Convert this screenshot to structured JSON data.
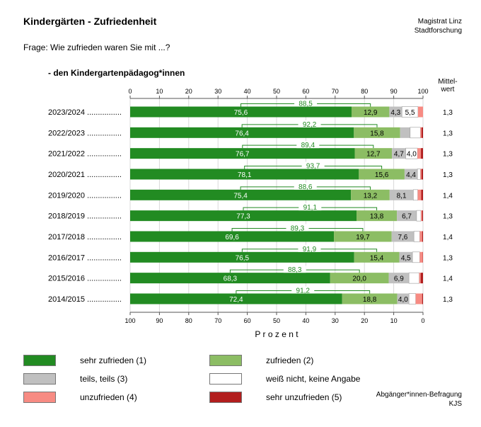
{
  "header": {
    "title": "Kindergärten - Zufriedenheit",
    "publisher": "Magistrat Linz\nStadtforschung",
    "question": "Frage: Wie zufrieden waren Sie mit ...?",
    "subtitle": "- den Kindergartenpädagog*innen",
    "mean_header": "Mittel-\nwert"
  },
  "footer": {
    "source": "Abgänger*innen-Befragung\nKJS"
  },
  "chart_data": {
    "type": "bar",
    "orientation": "horizontal-stacked-100",
    "xlabel": "P r o z e n t",
    "xlim": [
      0,
      100
    ],
    "top_ticks": [
      "0",
      "10",
      "20",
      "30",
      "40",
      "50",
      "60",
      "70",
      "80",
      "90",
      "100"
    ],
    "bottom_ticks": [
      "100",
      "90",
      "80",
      "70",
      "60",
      "50",
      "40",
      "30",
      "20",
      "10",
      "0"
    ],
    "categories": [
      "2023/2024",
      "2022/2023",
      "2021/2022",
      "2020/2021",
      "2019/2020",
      "2018/2019",
      "2017/2018",
      "2016/2017",
      "2015/2016",
      "2014/2015"
    ],
    "category_suffix": " ................",
    "series": [
      {
        "name": "sehr zufrieden  (1)",
        "color": "#228b22",
        "label_color": "#ffffff",
        "values": [
          75.6,
          76.4,
          76.7,
          78.1,
          75.4,
          77.3,
          69.6,
          76.5,
          68.3,
          72.4
        ]
      },
      {
        "name": "zufrieden  (2)",
        "color": "#8cbd64",
        "label_color": "#000000",
        "values": [
          12.9,
          15.8,
          12.7,
          15.6,
          13.2,
          13.8,
          19.7,
          15.4,
          20.0,
          18.8
        ]
      },
      {
        "name": "teils, teils  (3)",
        "color": "#c0c0c0",
        "label_color": "#000000",
        "values": [
          4.3,
          3.4,
          4.7,
          4.4,
          8.1,
          6.7,
          7.6,
          4.5,
          6.9,
          4.0
        ]
      },
      {
        "name": "weiß nicht, keine Angabe",
        "color": "#ffffff",
        "label_color": "#000000",
        "values": [
          5.5,
          3.5,
          4.0,
          1.0,
          1.5,
          1.5,
          2.0,
          2.5,
          3.5,
          2.3
        ]
      },
      {
        "name": "unzufrieden  (4)",
        "color": "#f78b83",
        "label_color": "#000000",
        "values": [
          1.7,
          0.4,
          1.2,
          0.4,
          1.2,
          0.4,
          0.8,
          1.0,
          0.5,
          2.2
        ]
      },
      {
        "name": "sehr unzufrieden  (5)",
        "color": "#b21e1e",
        "label_color": "#ffffff",
        "values": [
          0.0,
          0.5,
          0.7,
          0.5,
          0.6,
          0.3,
          0.3,
          0.1,
          0.8,
          0.3
        ]
      }
    ],
    "segment_labels": [
      [
        "75,6",
        "12,9",
        "4,3",
        "5,5",
        "",
        ""
      ],
      [
        "76,4",
        "15,8",
        "",
        "",
        "",
        ""
      ],
      [
        "76,7",
        "12,7",
        "4,7",
        "4,0",
        "",
        ""
      ],
      [
        "78,1",
        "15,6",
        "4,4",
        "",
        "",
        ""
      ],
      [
        "75,4",
        "13,2",
        "8,1",
        "",
        "",
        ""
      ],
      [
        "77,3",
        "13,8",
        "6,7",
        "",
        "",
        ""
      ],
      [
        "69,6",
        "19,7",
        "7,6",
        "",
        "",
        ""
      ],
      [
        "76,5",
        "15,4",
        "4,5",
        "",
        "",
        ""
      ],
      [
        "68,3",
        "20,0",
        "6,9",
        "",
        "",
        ""
      ],
      [
        "72,4",
        "18,8",
        "4,0",
        "",
        "",
        ""
      ]
    ],
    "combined_satisfied": [
      "88,5",
      "92,2",
      "89,4",
      "93,7",
      "88,6",
      "91,1",
      "89,3",
      "91,9",
      "88,3",
      "91,2"
    ],
    "bracket_color": "#228b22",
    "mean": [
      "1,3",
      "1,3",
      "1,3",
      "1,3",
      "1,4",
      "1,3",
      "1,4",
      "1,3",
      "1,4",
      "1,3"
    ],
    "legend_order": [
      0,
      1,
      2,
      3,
      4,
      5
    ]
  }
}
